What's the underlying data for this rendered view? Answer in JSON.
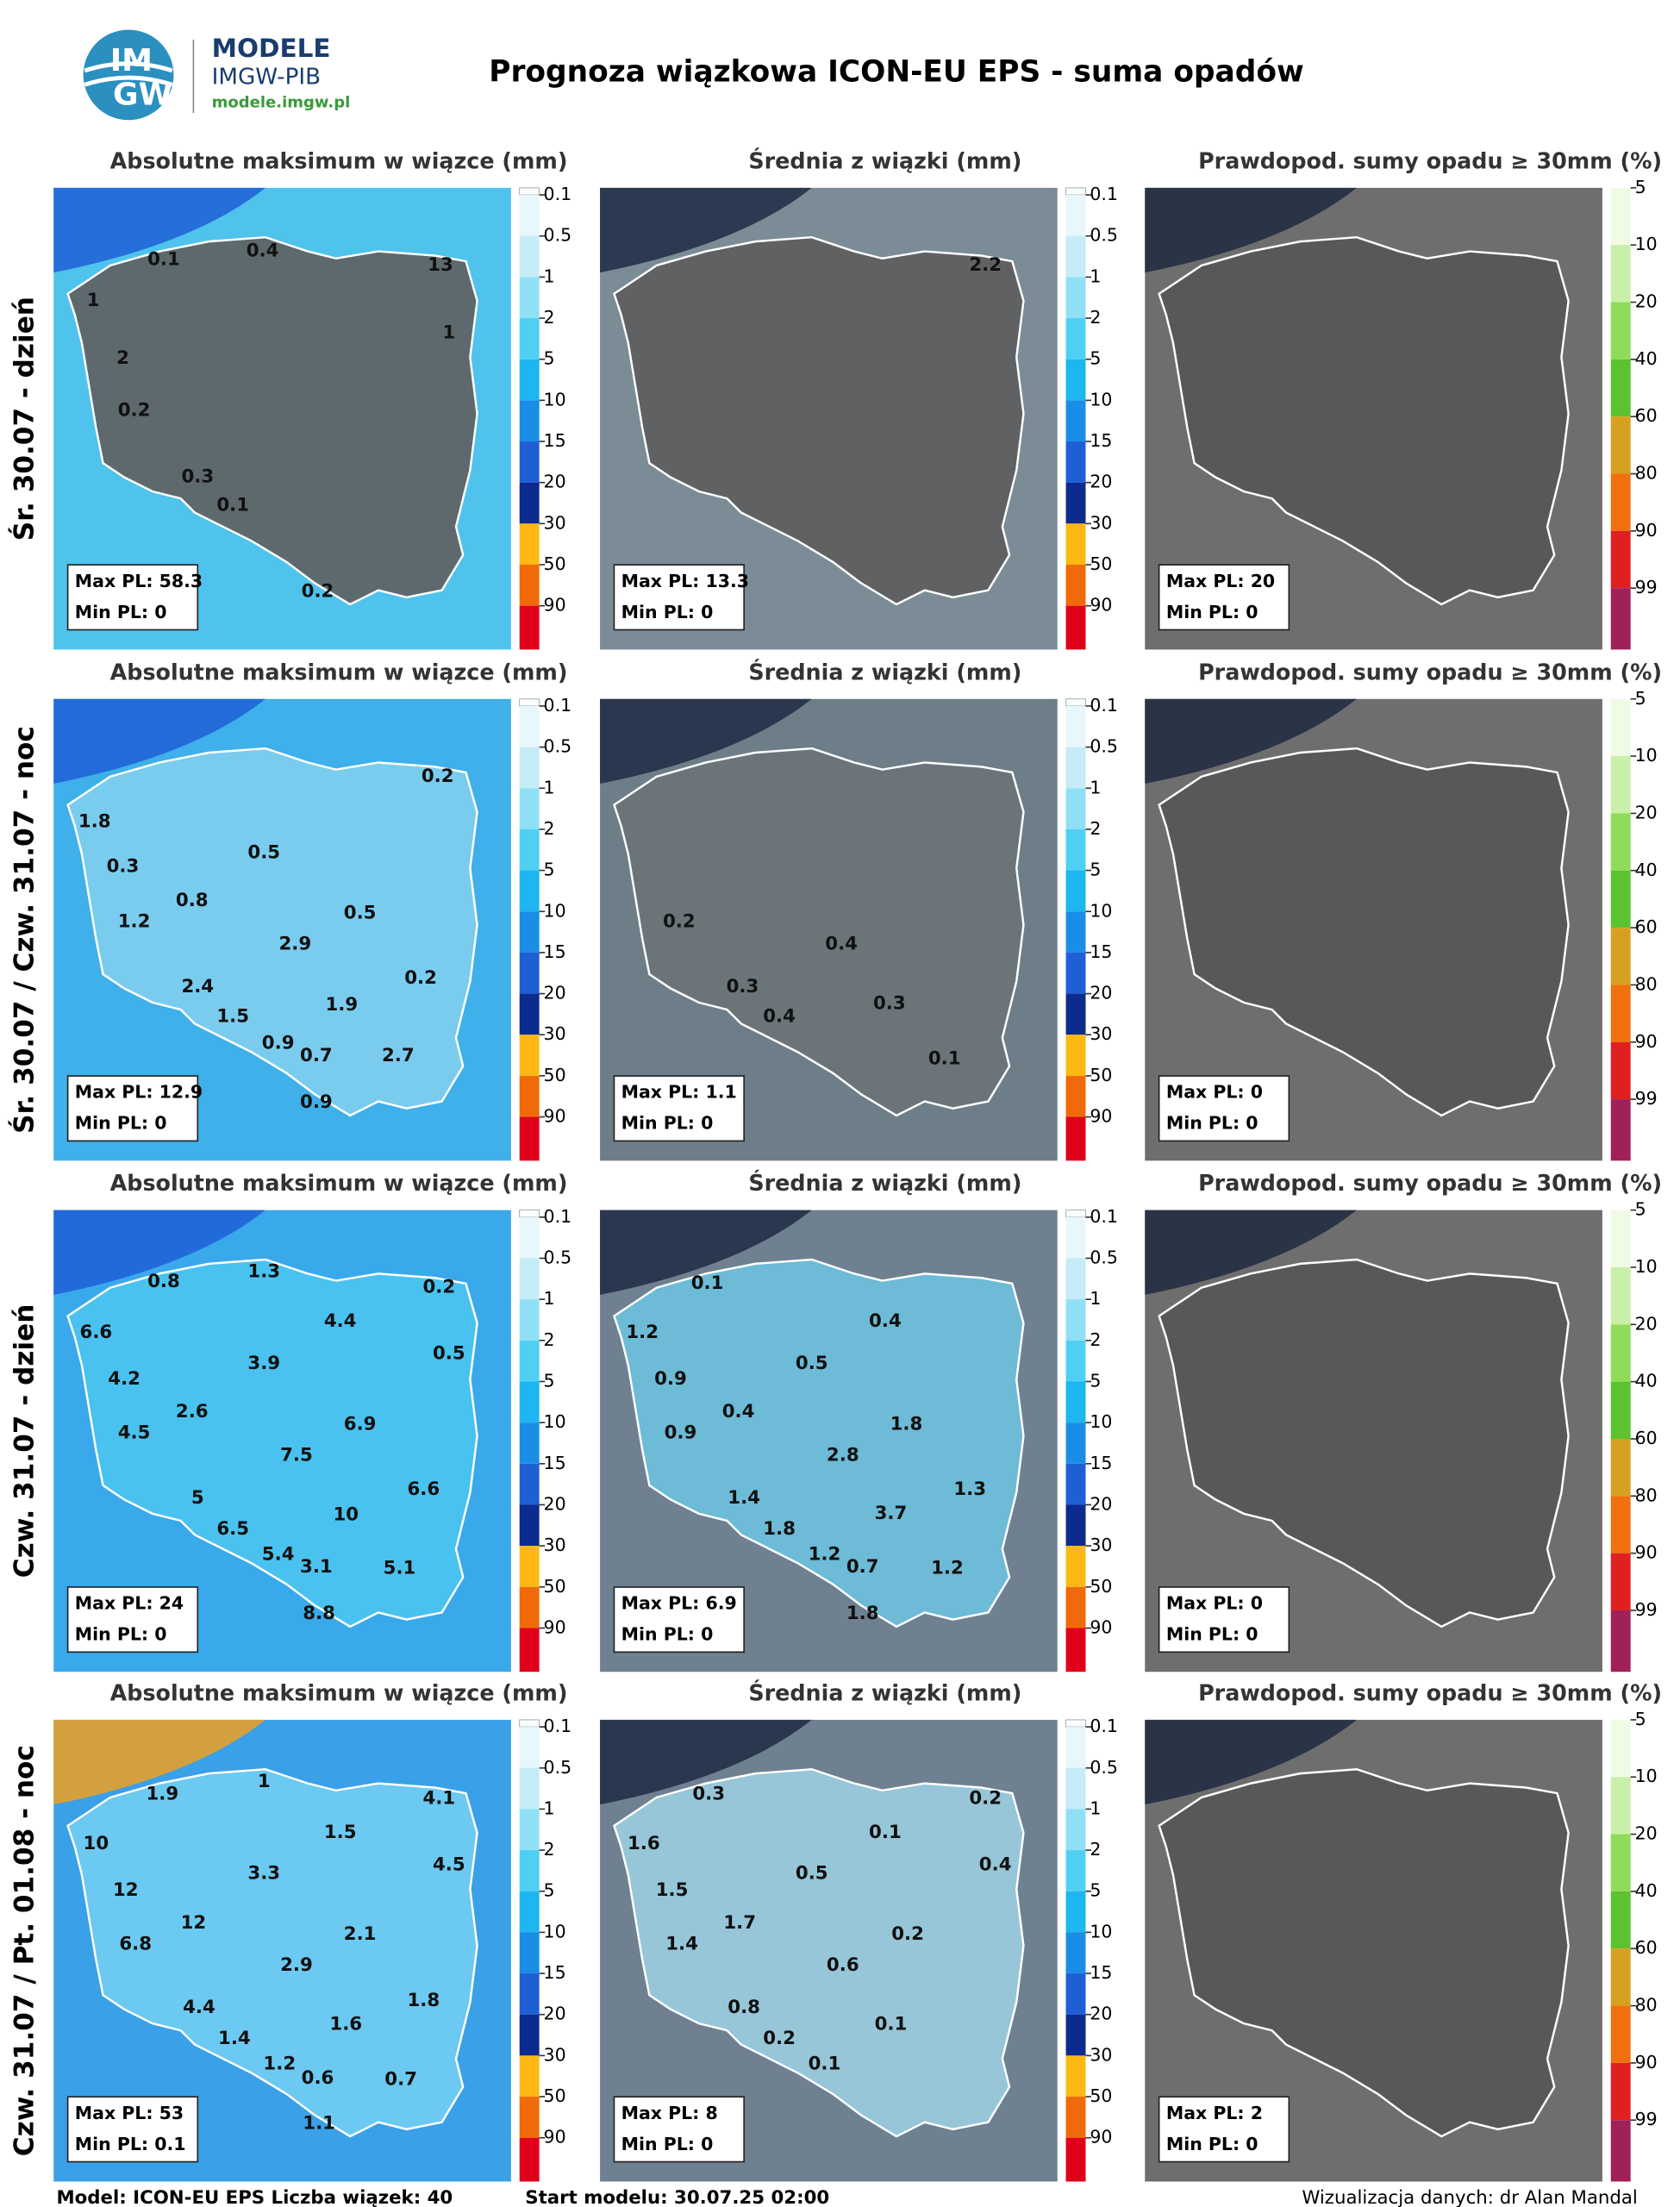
{
  "header": {
    "logo_top": "IM",
    "logo_bottom": "GW",
    "brand": "MODELE",
    "org": "IMGW-PIB",
    "site": "modele.imgw.pl",
    "title": "Prognoza wiązkowa ICON-EU EPS - suma opadów"
  },
  "column_titles": [
    "Absolutne maksimum w wiązce (mm)",
    "Średnia z wiązki (mm)",
    "Prawdopod. sumy opadu ≥ 30mm (%)"
  ],
  "precip_ticks": [
    0.1,
    0.5,
    1,
    2,
    5,
    10,
    15,
    20,
    30,
    50,
    90
  ],
  "prob_ticks": [
    5,
    10,
    20,
    40,
    60,
    80,
    90,
    99
  ],
  "rows": [
    {
      "label": "Śr. 30.07 - dzień",
      "panels": [
        {
          "labels": [
            0.1,
            0.4,
            13,
            1,
            1,
            2,
            0.2,
            0.3,
            0.1,
            0.2
          ],
          "max": "Max PL: 58.3",
          "min": "Min PL: 0"
        },
        {
          "labels": [
            2.2
          ],
          "max": "Max PL: 13.3",
          "min": "Min PL: 0"
        },
        {
          "labels": [],
          "max": "Max PL: 20",
          "min": "Min PL: 0"
        }
      ]
    },
    {
      "label": "Śr. 30.07 / Czw. 31.07 - noc",
      "panels": [
        {
          "labels": [
            0.2,
            1.8,
            0.3,
            0.5,
            0.8,
            1.2,
            0.5,
            2.9,
            0.2,
            2.4,
            1.9,
            1.5,
            0.9,
            0.7,
            2.7,
            0.9
          ],
          "max": "Max PL: 12.9",
          "min": "Min PL: 0"
        },
        {
          "labels": [
            0.2,
            0.4,
            0.3,
            0.3,
            0.4,
            0.1
          ],
          "max": "Max PL: 1.1",
          "min": "Min PL: 0"
        },
        {
          "labels": [],
          "max": "Max PL: 0",
          "min": "Min PL: 0"
        }
      ]
    },
    {
      "label": "Czw. 31.07 - dzień",
      "panels": [
        {
          "labels": [
            0.8,
            1.3,
            0.2,
            4.4,
            6.6,
            0.5,
            3.9,
            4.2,
            2.6,
            6.9,
            4.5,
            7.5,
            6.6,
            5,
            10,
            6.5,
            5.4,
            3.1,
            5.1,
            8.8
          ],
          "max": "Max PL: 24",
          "min": "Min PL: 0"
        },
        {
          "labels": [
            0.1,
            1.2,
            0.4,
            0.5,
            0.9,
            0.4,
            1.8,
            0.9,
            2.8,
            1.3,
            1.4,
            3.7,
            1.8,
            1.2,
            0.7,
            1.2,
            1.8
          ],
          "max": "Max PL: 6.9",
          "min": "Min PL: 0"
        },
        {
          "labels": [],
          "max": "Max PL: 0",
          "min": "Min PL: 0"
        }
      ]
    },
    {
      "label": "Czw. 31.07 / Pt. 01.08 - noc",
      "panels": [
        {
          "labels": [
            1.9,
            1,
            4.1,
            10,
            1.5,
            4.5,
            3.3,
            12,
            12,
            2.1,
            6.8,
            2.9,
            1.8,
            4.4,
            1.6,
            1.4,
            1.2,
            0.6,
            0.7,
            1.1
          ],
          "max": "Max PL: 53",
          "min": "Min PL: 0.1"
        },
        {
          "labels": [
            0.3,
            0.2,
            1.6,
            0.1,
            0.4,
            0.5,
            1.5,
            1.7,
            0.2,
            1.4,
            0.6,
            0.8,
            0.1,
            0.2,
            0.1
          ],
          "max": "Max PL: 8",
          "min": "Min PL: 0"
        },
        {
          "labels": [],
          "max": "Max PL: 2",
          "min": "Min PL: 0"
        }
      ]
    }
  ],
  "footer": {
    "model": "Model: ICON-EU EPS Liczba wiązek: 40",
    "start": "Start modelu: 30.07.25 02:00",
    "credit": "Wizualizacja danych: dr Alan Mandal"
  }
}
